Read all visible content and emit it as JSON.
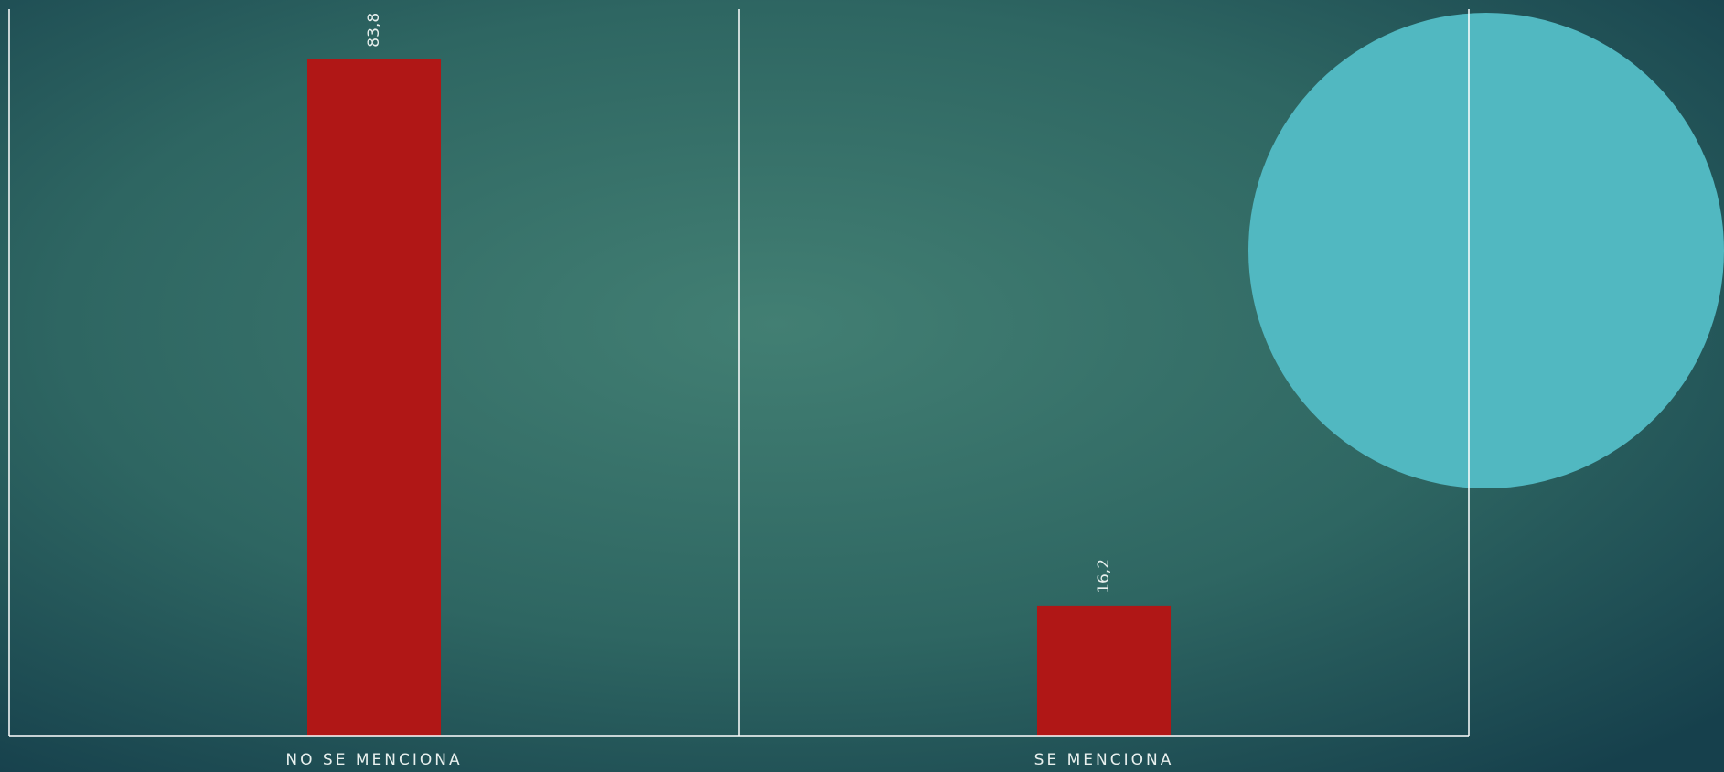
{
  "chart_data": {
    "type": "bar",
    "categories": [
      "NO SE MENCIONA",
      "SE MENCIONA"
    ],
    "values": [
      83.8,
      16.2
    ],
    "value_labels": [
      "83,8",
      "16,2"
    ],
    "color": "#b01716",
    "ylim": [
      0,
      90
    ]
  }
}
